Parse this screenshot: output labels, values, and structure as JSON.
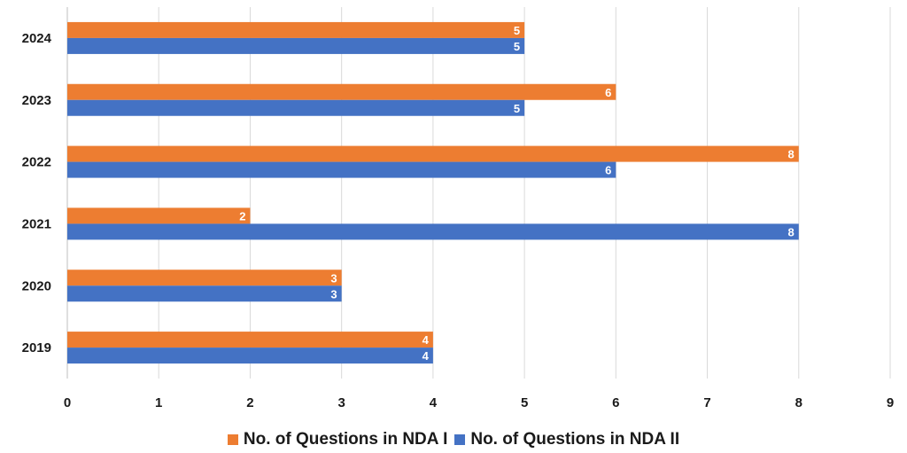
{
  "chart_data": {
    "type": "bar",
    "orientation": "horizontal",
    "categories": [
      "2024",
      "2023",
      "2022",
      "2021",
      "2020",
      "2019"
    ],
    "series": [
      {
        "name": "No. of Questions in NDA I",
        "color": "#ED7D31",
        "values": [
          5,
          6,
          8,
          2,
          3,
          4
        ]
      },
      {
        "name": "No. of Questions in NDA II",
        "color": "#4472C4",
        "values": [
          5,
          5,
          6,
          8,
          3,
          4
        ]
      }
    ],
    "xlim": [
      0,
      9
    ],
    "x_ticks": [
      "0",
      "1",
      "2",
      "3",
      "4",
      "5",
      "6",
      "7",
      "8",
      "9"
    ],
    "grid": true,
    "legend_position": "bottom",
    "data_labels": true,
    "title": "",
    "xlabel": "",
    "ylabel": ""
  }
}
